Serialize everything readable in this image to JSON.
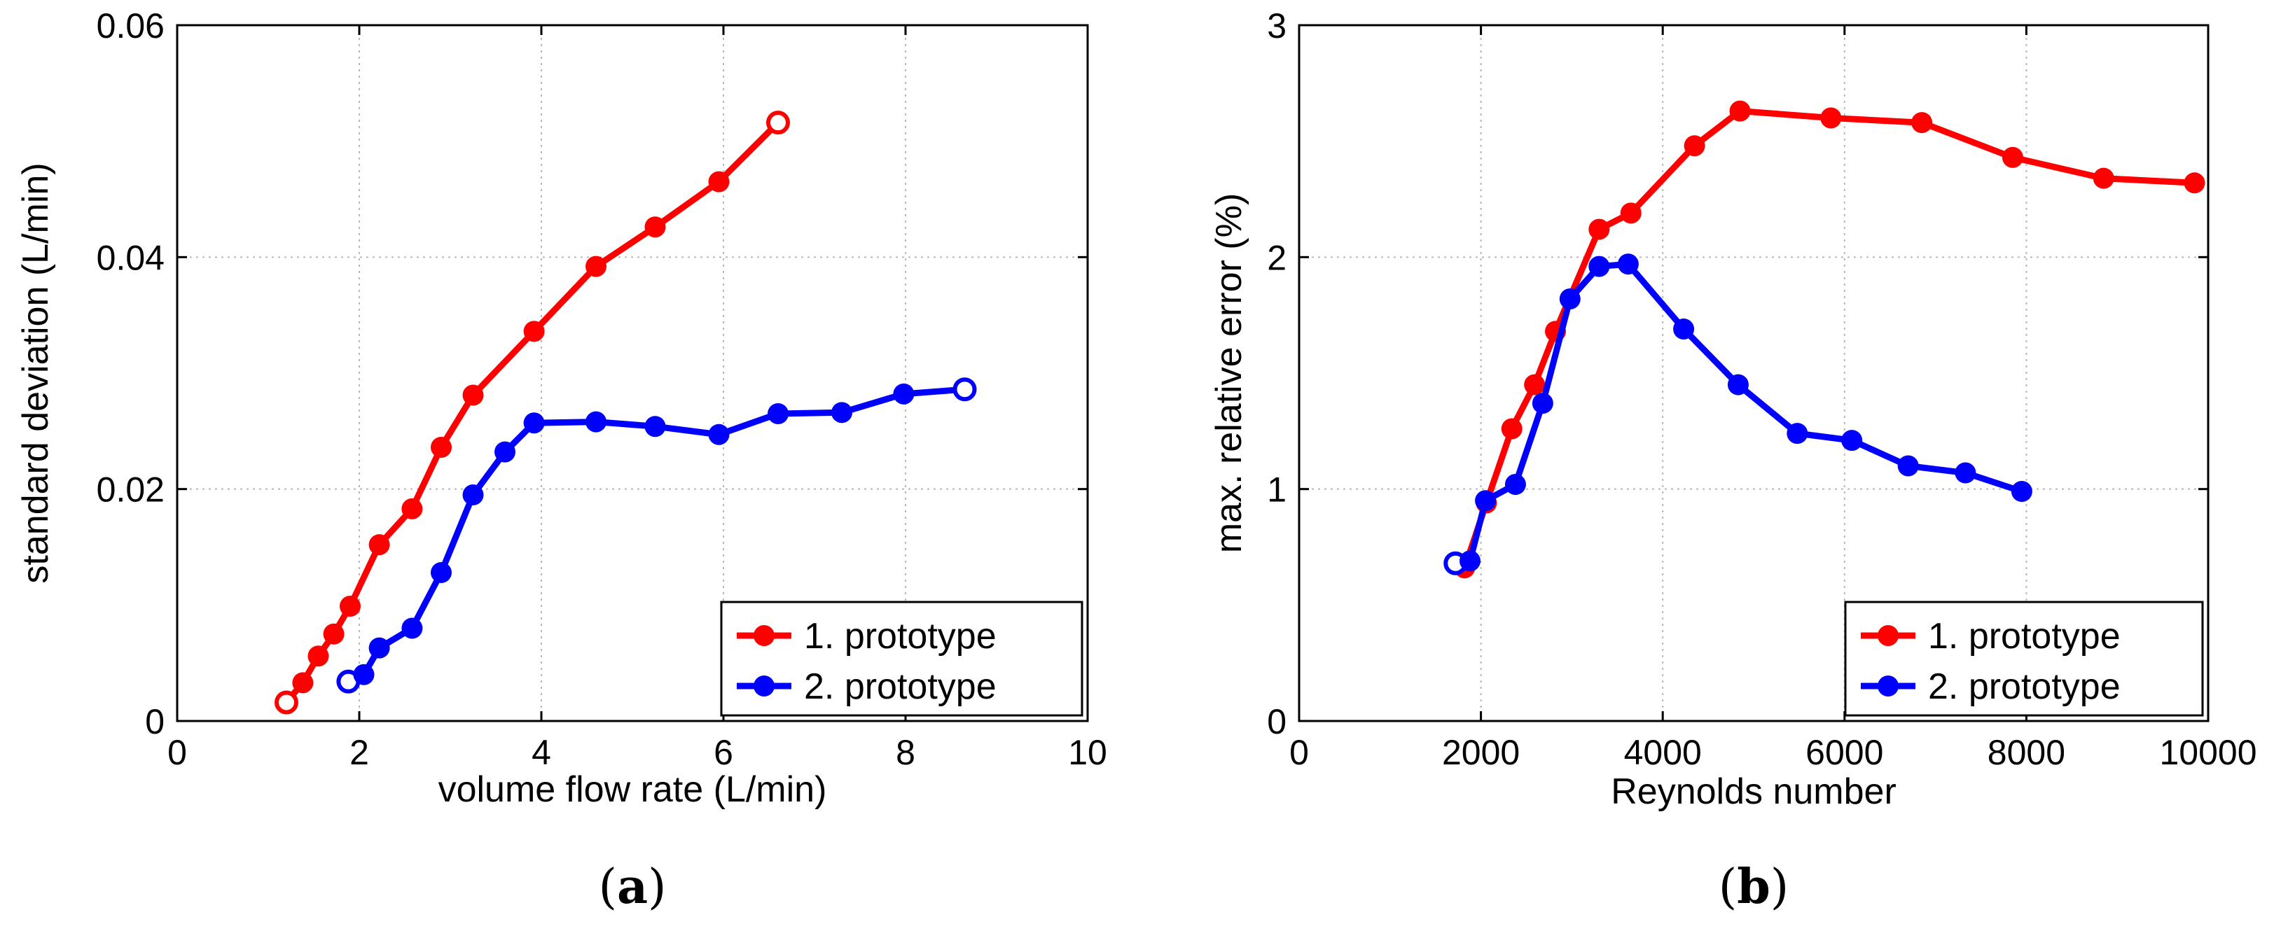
{
  "chart_data": [
    {
      "type": "line",
      "panel_label": "a",
      "xlabel": "volume flow rate (L/min)",
      "ylabel": "standard deviation (L/min)",
      "xlim": [
        0,
        10
      ],
      "ylim": [
        0,
        0.06
      ],
      "xticks": [
        "0",
        "2",
        "4",
        "6",
        "8",
        "10"
      ],
      "yticks": [
        "0",
        "0.02",
        "0.04",
        "0.06"
      ],
      "xtick_values": [
        0,
        2,
        4,
        6,
        8,
        10
      ],
      "ytick_values": [
        0,
        0.02,
        0.04,
        0.06
      ],
      "grid": true,
      "legend_position": "bottom-right",
      "series": [
        {
          "name": "1. prototype",
          "color": "#ff0000",
          "x": [
            1.2,
            1.38,
            1.55,
            1.72,
            1.9,
            2.22,
            2.58,
            2.9,
            3.25,
            3.92,
            4.6,
            5.25,
            5.95,
            6.6
          ],
          "y": [
            0.0016,
            0.0033,
            0.0056,
            0.0075,
            0.0099,
            0.0152,
            0.0183,
            0.0236,
            0.0281,
            0.0336,
            0.0392,
            0.0426,
            0.0465,
            0.0516
          ]
        },
        {
          "name": "2. prototype",
          "color": "#0000ff",
          "x": [
            1.88,
            2.05,
            2.22,
            2.58,
            2.9,
            3.25,
            3.6,
            3.92,
            4.6,
            5.25,
            5.95,
            6.6,
            7.3,
            7.98,
            8.65
          ],
          "y": [
            0.0034,
            0.004,
            0.0063,
            0.008,
            0.0128,
            0.0195,
            0.0232,
            0.0257,
            0.0258,
            0.0254,
            0.0247,
            0.0265,
            0.0266,
            0.0282,
            0.0286
          ]
        }
      ]
    },
    {
      "type": "line",
      "panel_label": "b",
      "xlabel": "Reynolds number",
      "ylabel": "max. relative error (%)",
      "xlim": [
        0,
        10000
      ],
      "ylim": [
        0,
        3
      ],
      "xticks": [
        "0",
        "2000",
        "4000",
        "6000",
        "8000",
        "10000"
      ],
      "yticks": [
        "0",
        "1",
        "2",
        "3"
      ],
      "xtick_values": [
        0,
        2000,
        4000,
        6000,
        8000,
        10000
      ],
      "ytick_values": [
        0,
        1,
        2,
        3
      ],
      "grid": true,
      "legend_position": "bottom-right",
      "series": [
        {
          "name": "1. prototype",
          "color": "#ff0000",
          "x": [
            1820,
            2060,
            2340,
            2590,
            2820,
            3300,
            3650,
            4350,
            4850,
            5850,
            6850,
            7850,
            8850,
            9850
          ],
          "y": [
            0.66,
            0.94,
            1.26,
            1.45,
            1.68,
            2.12,
            2.19,
            2.48,
            2.63,
            2.6,
            2.58,
            2.43,
            2.34,
            2.32
          ]
        },
        {
          "name": "2. prototype",
          "color": "#0000ff",
          "x": [
            1720,
            1880,
            2050,
            2380,
            2680,
            2980,
            3300,
            3620,
            4230,
            4830,
            5480,
            6080,
            6700,
            7330,
            7950
          ],
          "y": [
            0.68,
            0.69,
            0.95,
            1.02,
            1.37,
            1.82,
            1.96,
            1.97,
            1.69,
            1.45,
            1.24,
            1.21,
            1.1,
            1.07,
            0.99
          ]
        }
      ]
    }
  ]
}
